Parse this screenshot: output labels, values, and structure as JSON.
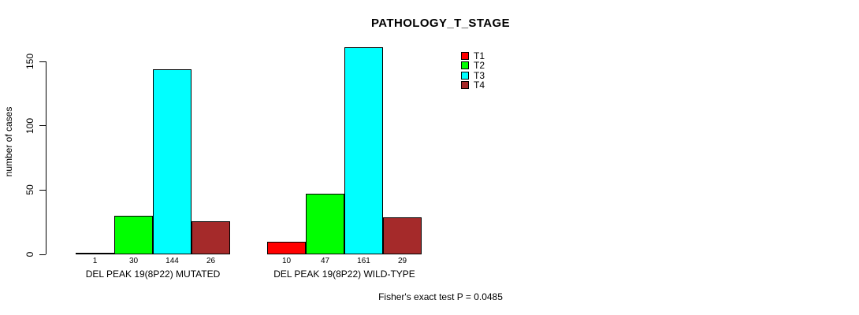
{
  "chart_data": {
    "type": "bar",
    "title": "PATHOLOGY_T_STAGE",
    "xlabel": "",
    "ylabel": "number of cases",
    "ylim": [
      0,
      150
    ],
    "yticks": [
      0,
      50,
      100,
      150
    ],
    "grid": false,
    "legend_position": "top-right",
    "categories": [
      "DEL PEAK 19(8P22) MUTATED",
      "DEL PEAK 19(8P22) WILD-TYPE"
    ],
    "series": [
      {
        "name": "T1",
        "color": "#ff0000",
        "values": [
          1,
          10
        ]
      },
      {
        "name": "T2",
        "color": "#00ff00",
        "values": [
          30,
          47
        ]
      },
      {
        "name": "T3",
        "color": "#00ffff",
        "values": [
          144,
          161
        ]
      },
      {
        "name": "T4",
        "color": "#a52a2a",
        "values": [
          26,
          29
        ]
      }
    ],
    "bar_value_labels": [
      [
        1,
        30,
        144,
        26
      ],
      [
        10,
        47,
        161,
        29
      ]
    ],
    "annotation": "Fisher's exact test P = 0.0485"
  }
}
